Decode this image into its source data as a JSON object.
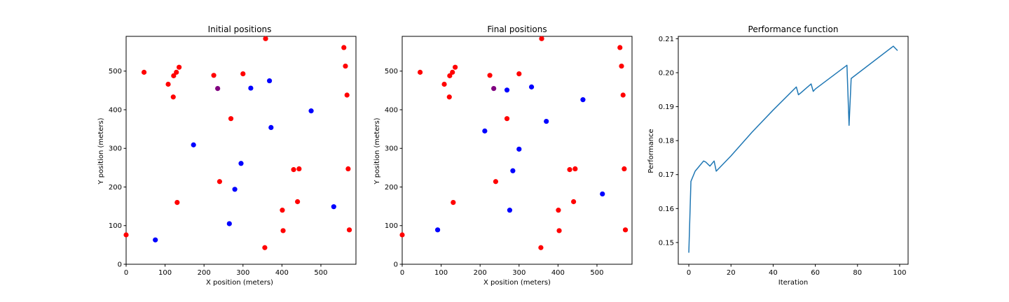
{
  "chart_data": [
    {
      "type": "scatter",
      "title": "Initial positions",
      "xlabel": "X position (meters)",
      "ylabel": "Y position (meters)",
      "xlim": [
        0,
        590
      ],
      "ylim": [
        0,
        590
      ],
      "xticks": [
        0,
        100,
        200,
        300,
        400,
        500
      ],
      "yticks": [
        0,
        100,
        200,
        300,
        400,
        500
      ],
      "grid": false,
      "series": [
        {
          "color": "#ff0000",
          "points": [
            [
              0,
              76
            ],
            [
              46,
              497
            ],
            [
              108,
              466
            ],
            [
              121,
              433
            ],
            [
              122,
              488
            ],
            [
              129,
              497
            ],
            [
              136,
              510
            ],
            [
              131,
              160
            ],
            [
              225,
              489
            ],
            [
              269,
              377
            ],
            [
              240,
              214
            ],
            [
              300,
              493
            ],
            [
              358,
              584
            ],
            [
              356,
              43
            ],
            [
              401,
              140
            ],
            [
              403,
              87
            ],
            [
              430,
              245
            ],
            [
              444,
              247
            ],
            [
              440,
              162
            ],
            [
              559,
              561
            ],
            [
              563,
              513
            ],
            [
              567,
              438
            ],
            [
              570,
              247
            ],
            [
              573,
              89
            ]
          ]
        },
        {
          "color": "#0000ff",
          "points": [
            [
              75,
              63
            ],
            [
              173,
              309
            ],
            [
              265,
              105
            ],
            [
              279,
              194
            ],
            [
              295,
              261
            ],
            [
              320,
              456
            ],
            [
              368,
              475
            ],
            [
              372,
              354
            ],
            [
              475,
              397
            ],
            [
              533,
              149
            ]
          ]
        },
        {
          "color": "#800080",
          "points": [
            [
              235,
              455
            ]
          ]
        }
      ]
    },
    {
      "type": "scatter",
      "title": "Final positions",
      "xlabel": "X position (meters)",
      "ylabel": "Y position (meters)",
      "xlim": [
        0,
        590
      ],
      "ylim": [
        0,
        590
      ],
      "xticks": [
        0,
        100,
        200,
        300,
        400,
        500
      ],
      "yticks": [
        0,
        100,
        200,
        300,
        400,
        500
      ],
      "grid": false,
      "series": [
        {
          "color": "#ff0000",
          "points": [
            [
              0,
              76
            ],
            [
              46,
              497
            ],
            [
              108,
              466
            ],
            [
              121,
              433
            ],
            [
              122,
              488
            ],
            [
              129,
              497
            ],
            [
              136,
              510
            ],
            [
              131,
              160
            ],
            [
              225,
              489
            ],
            [
              269,
              377
            ],
            [
              240,
              214
            ],
            [
              300,
              493
            ],
            [
              358,
              584
            ],
            [
              356,
              43
            ],
            [
              401,
              140
            ],
            [
              403,
              87
            ],
            [
              430,
              245
            ],
            [
              444,
              247
            ],
            [
              440,
              162
            ],
            [
              559,
              561
            ],
            [
              563,
              513
            ],
            [
              567,
              438
            ],
            [
              570,
              247
            ],
            [
              573,
              89
            ]
          ]
        },
        {
          "color": "#0000ff",
          "points": [
            [
              91,
              89
            ],
            [
              212,
              345
            ],
            [
              269,
              451
            ],
            [
              276,
              140
            ],
            [
              284,
              242
            ],
            [
              300,
              298
            ],
            [
              332,
              459
            ],
            [
              370,
              370
            ],
            [
              464,
              426
            ],
            [
              514,
              182
            ]
          ]
        },
        {
          "color": "#800080",
          "points": [
            [
              235,
              455
            ]
          ]
        }
      ]
    },
    {
      "type": "line",
      "title": "Performance function",
      "xlabel": "Iteration",
      "ylabel": "Performance",
      "xlim": [
        -5,
        104
      ],
      "ylim": [
        0.1436,
        0.2107
      ],
      "xticks": [
        0,
        20,
        40,
        60,
        80,
        100
      ],
      "yticks": [
        0.15,
        0.16,
        0.17,
        0.18,
        0.19,
        0.2,
        0.21
      ],
      "yticklabels": [
        "0.15",
        "0.16",
        "0.17",
        "0.18",
        "0.19",
        "0.20",
        "0.21"
      ],
      "grid": false,
      "series": [
        {
          "color": "#1f77b4",
          "x": [
            0,
            1,
            3,
            5,
            7,
            8,
            10,
            12,
            13,
            20,
            30,
            40,
            51,
            52,
            53,
            58,
            59,
            60,
            75,
            76,
            77,
            97,
            99
          ],
          "y": [
            0.147,
            0.168,
            0.171,
            0.1725,
            0.174,
            0.1737,
            0.1725,
            0.174,
            0.171,
            0.1755,
            0.1825,
            0.189,
            0.1958,
            0.1935,
            0.194,
            0.1967,
            0.1945,
            0.1952,
            0.2022,
            0.1845,
            0.1983,
            0.2078,
            0.2065
          ]
        }
      ]
    }
  ]
}
